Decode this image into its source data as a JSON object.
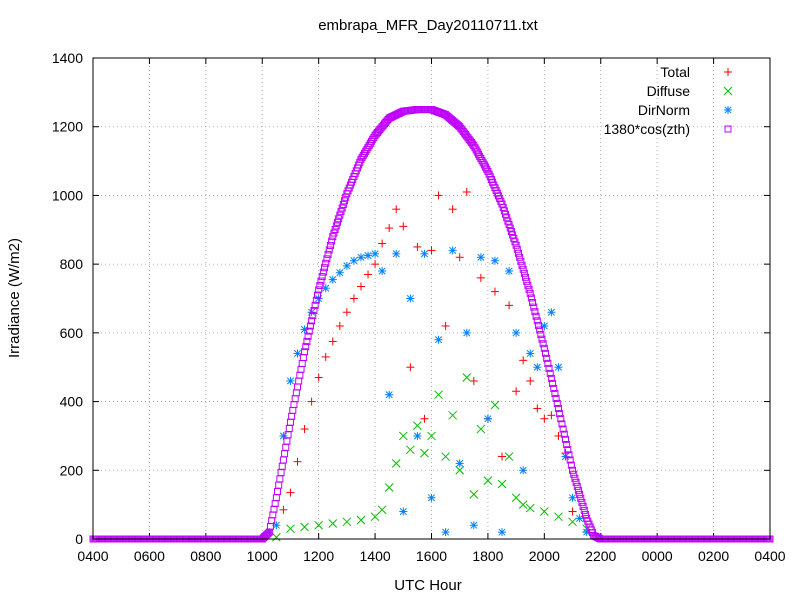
{
  "chart_data": {
    "type": "scatter",
    "title": "embrapa_MFR_Day20110711.txt",
    "xlabel": "UTC Hour",
    "ylabel": "Irradiance (W/m2)",
    "x_domain_hours": [
      4,
      28
    ],
    "xlim": [
      "0400",
      "0400"
    ],
    "ylim": [
      0,
      1400
    ],
    "x_tick_labels": [
      "0400",
      "0600",
      "0800",
      "1000",
      "1200",
      "1400",
      "1600",
      "1800",
      "2000",
      "2200",
      "0000",
      "0200",
      "0400"
    ],
    "y_ticks": [
      0,
      200,
      400,
      600,
      800,
      1000,
      1200,
      1400
    ],
    "grid": true,
    "legend_position": "top-right",
    "series": [
      {
        "name": "Total",
        "marker": "plus",
        "color": "#ff0000",
        "points": [
          [
            10.75,
            85
          ],
          [
            11.0,
            135
          ],
          [
            11.25,
            225
          ],
          [
            11.5,
            320
          ],
          [
            11.75,
            400
          ],
          [
            12.0,
            470
          ],
          [
            12.25,
            530
          ],
          [
            12.5,
            575
          ],
          [
            12.75,
            620
          ],
          [
            13.0,
            660
          ],
          [
            13.25,
            700
          ],
          [
            13.5,
            735
          ],
          [
            13.75,
            770
          ],
          [
            14.0,
            800
          ],
          [
            14.25,
            860
          ],
          [
            14.5,
            905
          ],
          [
            14.75,
            960
          ],
          [
            15.0,
            910
          ],
          [
            15.25,
            500
          ],
          [
            15.5,
            850
          ],
          [
            15.75,
            350
          ],
          [
            16.0,
            840
          ],
          [
            16.25,
            1000
          ],
          [
            16.5,
            620
          ],
          [
            16.75,
            960
          ],
          [
            17.0,
            820
          ],
          [
            17.25,
            1010
          ],
          [
            17.5,
            460
          ],
          [
            17.75,
            760
          ],
          [
            18.0,
            350
          ],
          [
            18.25,
            720
          ],
          [
            18.5,
            240
          ],
          [
            18.75,
            680
          ],
          [
            19.0,
            430
          ],
          [
            19.25,
            520
          ],
          [
            19.5,
            460
          ],
          [
            19.75,
            380
          ],
          [
            20.0,
            350
          ],
          [
            20.25,
            360
          ],
          [
            20.5,
            300
          ],
          [
            20.75,
            250
          ],
          [
            21.0,
            80
          ]
        ]
      },
      {
        "name": "Diffuse",
        "marker": "cross",
        "color": "#00c000",
        "points": [
          [
            10.5,
            5
          ],
          [
            11.0,
            30
          ],
          [
            11.5,
            35
          ],
          [
            12.0,
            40
          ],
          [
            12.5,
            45
          ],
          [
            13.0,
            50
          ],
          [
            13.5,
            55
          ],
          [
            14.0,
            65
          ],
          [
            14.25,
            85
          ],
          [
            14.5,
            150
          ],
          [
            14.75,
            220
          ],
          [
            15.0,
            300
          ],
          [
            15.25,
            260
          ],
          [
            15.5,
            330
          ],
          [
            15.75,
            250
          ],
          [
            16.0,
            300
          ],
          [
            16.25,
            420
          ],
          [
            16.5,
            240
          ],
          [
            16.75,
            360
          ],
          [
            17.0,
            200
          ],
          [
            17.25,
            470
          ],
          [
            17.5,
            130
          ],
          [
            17.75,
            320
          ],
          [
            18.0,
            170
          ],
          [
            18.25,
            390
          ],
          [
            18.5,
            160
          ],
          [
            18.75,
            240
          ],
          [
            19.0,
            120
          ],
          [
            19.25,
            100
          ],
          [
            19.5,
            90
          ],
          [
            20.0,
            80
          ],
          [
            20.5,
            65
          ],
          [
            21.0,
            50
          ],
          [
            21.5,
            30
          ]
        ]
      },
      {
        "name": "DirNorm",
        "marker": "star",
        "color": "#0080ff",
        "points": [
          [
            10.25,
            20
          ],
          [
            10.5,
            40
          ],
          [
            10.75,
            300
          ],
          [
            11.0,
            460
          ],
          [
            11.25,
            540
          ],
          [
            11.5,
            610
          ],
          [
            11.75,
            660
          ],
          [
            12.0,
            700
          ],
          [
            12.25,
            730
          ],
          [
            12.5,
            755
          ],
          [
            12.75,
            775
          ],
          [
            13.0,
            795
          ],
          [
            13.25,
            810
          ],
          [
            13.5,
            820
          ],
          [
            13.75,
            825
          ],
          [
            14.0,
            830
          ],
          [
            14.25,
            780
          ],
          [
            14.5,
            420
          ],
          [
            14.75,
            830
          ],
          [
            15.0,
            80
          ],
          [
            15.25,
            700
          ],
          [
            15.5,
            300
          ],
          [
            15.75,
            830
          ],
          [
            16.0,
            120
          ],
          [
            16.25,
            580
          ],
          [
            16.5,
            20
          ],
          [
            16.75,
            840
          ],
          [
            17.0,
            220
          ],
          [
            17.25,
            600
          ],
          [
            17.5,
            40
          ],
          [
            17.75,
            820
          ],
          [
            18.0,
            350
          ],
          [
            18.25,
            810
          ],
          [
            18.5,
            20
          ],
          [
            18.75,
            780
          ],
          [
            19.0,
            600
          ],
          [
            19.25,
            200
          ],
          [
            19.5,
            540
          ],
          [
            19.75,
            500
          ],
          [
            20.0,
            620
          ],
          [
            20.25,
            660
          ],
          [
            20.5,
            500
          ],
          [
            20.75,
            240
          ],
          [
            21.0,
            120
          ],
          [
            21.25,
            60
          ],
          [
            21.5,
            20
          ]
        ]
      },
      {
        "name": "1380*cos(zth)",
        "marker": "square",
        "color": "#c000ff",
        "points": [
          [
            4.0,
            0
          ],
          [
            6.0,
            0
          ],
          [
            8.0,
            0
          ],
          [
            9.5,
            0
          ],
          [
            10.0,
            0
          ],
          [
            10.25,
            20
          ],
          [
            10.5,
            120
          ],
          [
            10.75,
            230
          ],
          [
            11.0,
            340
          ],
          [
            11.5,
            545
          ],
          [
            12.0,
            725
          ],
          [
            12.5,
            880
          ],
          [
            13.0,
            1005
          ],
          [
            13.5,
            1105
          ],
          [
            14.0,
            1175
          ],
          [
            14.5,
            1225
          ],
          [
            15.0,
            1245
          ],
          [
            15.5,
            1250
          ],
          [
            16.0,
            1250
          ],
          [
            16.5,
            1235
          ],
          [
            17.0,
            1200
          ],
          [
            17.5,
            1145
          ],
          [
            18.0,
            1070
          ],
          [
            18.5,
            975
          ],
          [
            19.0,
            855
          ],
          [
            19.5,
            715
          ],
          [
            20.0,
            555
          ],
          [
            20.5,
            380
          ],
          [
            21.0,
            200
          ],
          [
            21.5,
            60
          ],
          [
            21.75,
            10
          ],
          [
            22.0,
            0
          ],
          [
            24.0,
            0
          ],
          [
            26.0,
            0
          ],
          [
            28.0,
            0
          ]
        ]
      }
    ]
  }
}
